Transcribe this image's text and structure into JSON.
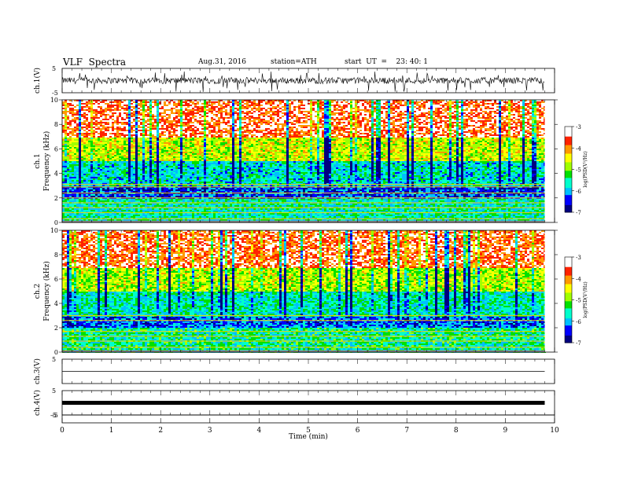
{
  "header": {
    "title": "VLF  Spectra",
    "date": "Aug.31, 2016",
    "station": "station=ATH",
    "start": "start  UT  =    23: 40: 1"
  },
  "chart_data": {
    "type": "heatmap",
    "xlabel": "Time  (min)",
    "xlim": [
      0,
      10
    ],
    "xticks": [
      "0",
      "1",
      "2",
      "3",
      "4",
      "5",
      "6",
      "7",
      "8",
      "9",
      "10"
    ],
    "data_extent_min": 9.8,
    "panels": [
      {
        "id": "ch1-waveform",
        "type": "line",
        "ylabel": "ch.1(V)",
        "ylim": [
          -5,
          5
        ],
        "yticks": [
          "5",
          "-5"
        ],
        "approx_level": 0,
        "approx_amplitude": 1.3
      },
      {
        "id": "ch1-spectrogram",
        "type": "heatmap",
        "ylabel_channel": "ch.1",
        "ylabel": "Frequency  (kHz)",
        "ylim": [
          0,
          10
        ],
        "yticks": [
          "0",
          "2",
          "4",
          "6",
          "8",
          "10"
        ],
        "colorbar": {
          "label": "log(PSD(V²/Hz)",
          "range": [
            -7,
            -3
          ],
          "ticks": [
            "-3",
            "-4",
            "-5",
            "-6",
            "-7"
          ]
        },
        "bands": [
          {
            "freq_khz": [
              7,
              10
            ],
            "log_psd": -3.5
          },
          {
            "freq_khz": [
              5,
              7
            ],
            "log_psd": -4.6
          },
          {
            "freq_khz": [
              3,
              5
            ],
            "log_psd": -5.7
          },
          {
            "freq_khz": [
              2,
              3
            ],
            "log_psd": -6.3
          },
          {
            "freq_khz": [
              0,
              2
            ],
            "log_psd": -5.6
          }
        ],
        "tone_lines_khz": [
          0.3,
          0.8,
          1.2,
          1.6,
          2.0,
          2.4,
          2.9,
          3.1
        ]
      },
      {
        "id": "ch2-spectrogram",
        "type": "heatmap",
        "ylabel_channel": "ch.2",
        "ylabel": "Frequency  (kHz)",
        "ylim": [
          0,
          10
        ],
        "yticks": [
          "0",
          "2",
          "4",
          "6",
          "8",
          "10"
        ],
        "colorbar": {
          "label": "log(PSD(V²/Hz)",
          "range": [
            -7,
            -3
          ],
          "ticks": [
            "-3",
            "-4",
            "-5",
            "-6",
            "-7"
          ]
        },
        "bands": [
          {
            "freq_khz": [
              7,
              10
            ],
            "log_psd": -3.6
          },
          {
            "freq_khz": [
              5,
              7
            ],
            "log_psd": -4.7
          },
          {
            "freq_khz": [
              3,
              5
            ],
            "log_psd": -5.6
          },
          {
            "freq_khz": [
              2,
              3
            ],
            "log_psd": -6.2
          },
          {
            "freq_khz": [
              0,
              2
            ],
            "log_psd": -5.5
          }
        ],
        "tone_lines_khz": [
          0.4,
          0.9,
          1.3,
          1.7,
          2.6,
          3.0
        ]
      },
      {
        "id": "ch3-waveform",
        "type": "line",
        "ylabel": "ch.3(V)",
        "ylim": [
          -5,
          5
        ],
        "yticks": [
          "5"
        ],
        "approx_level": 0
      },
      {
        "id": "ch4-waveform",
        "type": "line",
        "ylabel": "ch.4(V)",
        "ylim": [
          -5,
          5
        ],
        "yticks": [
          "5",
          "-5"
        ],
        "approx_level": 0
      }
    ],
    "colormap": [
      "#000080",
      "#0000ff",
      "#00bfff",
      "#00ffcc",
      "#00e000",
      "#a0ff00",
      "#ffff00",
      "#ff9900",
      "#ff2200",
      "#ffffff"
    ]
  }
}
